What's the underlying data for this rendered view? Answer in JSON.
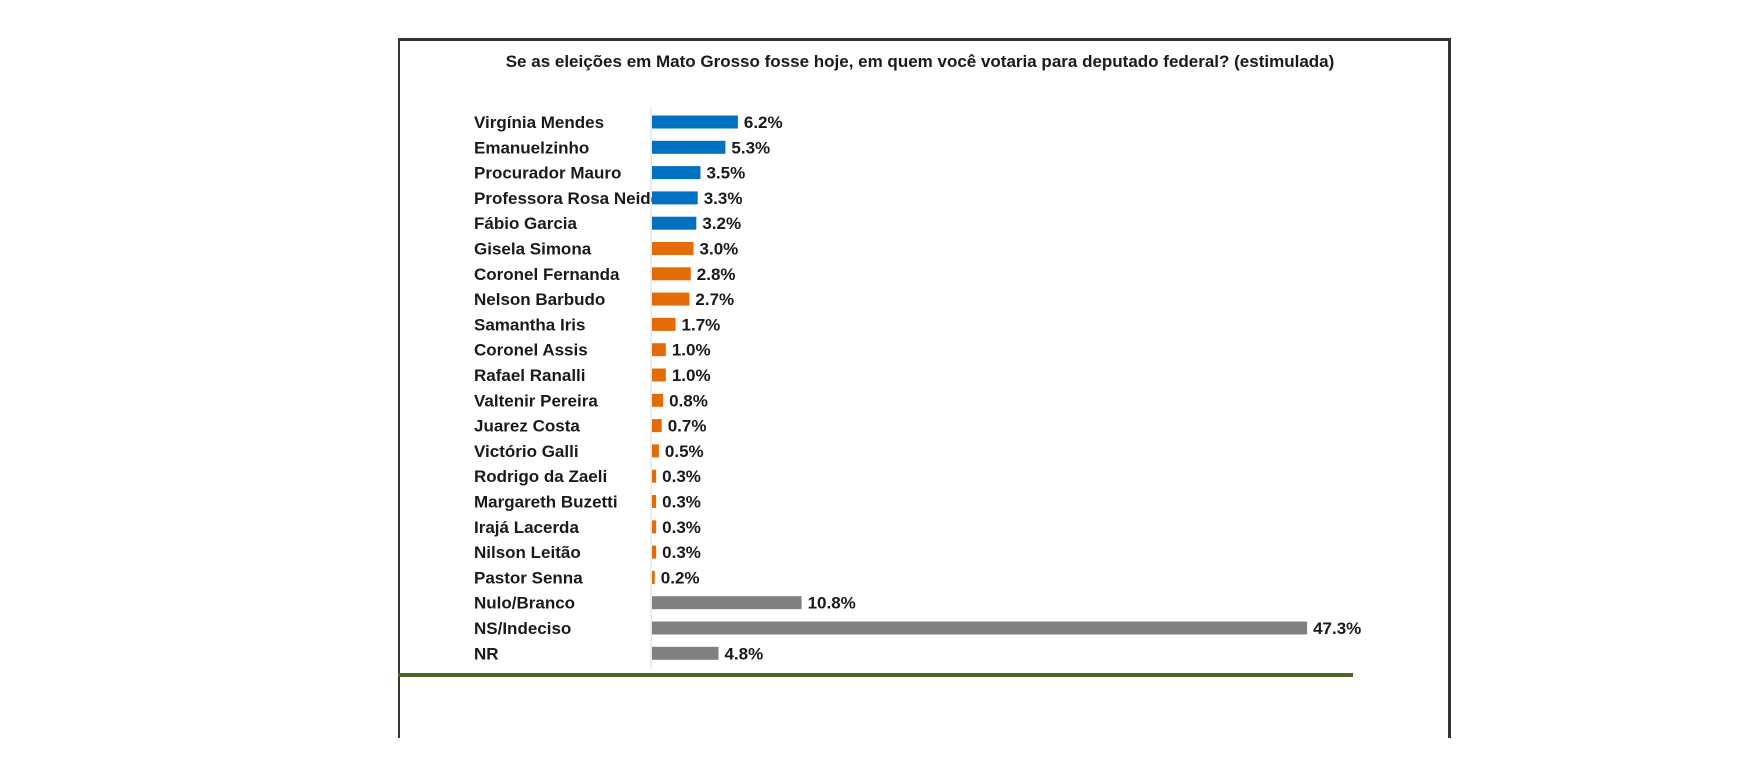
{
  "chart_data": {
    "type": "bar",
    "orientation": "horizontal",
    "title": "Se as eleições em Mato Grosso fosse hoje, em quem você votaria para deputado federal? (estimulada)",
    "xlim": [
      0,
      50
    ],
    "grid": false,
    "categories": [
      "Virgínia Mendes",
      "Emanuelzinho",
      "Procurador Mauro",
      "Professora Rosa Neide",
      "Fábio Garcia",
      "Gisela Simona",
      "Coronel Fernanda",
      "Nelson Barbudo",
      "Samantha Iris",
      "Coronel Assis",
      "Rafael Ranalli",
      "Valtenir Pereira",
      "Juarez Costa",
      "Victório Galli",
      "Rodrigo da Zaeli",
      "Margareth Buzetti",
      "Irajá Lacerda",
      "Nilson Leitão",
      "Pastor Senna",
      "Nulo/Branco",
      "NS/Indeciso",
      "NR"
    ],
    "values": [
      6.2,
      5.3,
      3.5,
      3.3,
      3.2,
      3.0,
      2.8,
      2.7,
      1.7,
      1.0,
      1.0,
      0.8,
      0.7,
      0.5,
      0.3,
      0.3,
      0.3,
      0.3,
      0.2,
      10.8,
      47.3,
      4.8
    ],
    "value_labels": [
      "6.2%",
      "5.3%",
      "3.5%",
      "3.3%",
      "3.2%",
      "3.0%",
      "2.8%",
      "2.7%",
      "1.7%",
      "1.0%",
      "1.0%",
      "0.8%",
      "0.7%",
      "0.5%",
      "0.3%",
      "0.3%",
      "0.3%",
      "0.3%",
      "0.2%",
      "10.8%",
      "47.3%",
      "4.8%"
    ],
    "bar_colors": [
      "#0070c0",
      "#0070c0",
      "#0070c0",
      "#0070c0",
      "#0070c0",
      "#e36c09",
      "#e36c09",
      "#e36c09",
      "#e36c09",
      "#e36c09",
      "#e36c09",
      "#e36c09",
      "#e36c09",
      "#e36c09",
      "#e36c09",
      "#e36c09",
      "#e36c09",
      "#e36c09",
      "#e36c09",
      "#808080",
      "#808080",
      "#808080"
    ],
    "axis_color": "#d9d9d9"
  }
}
